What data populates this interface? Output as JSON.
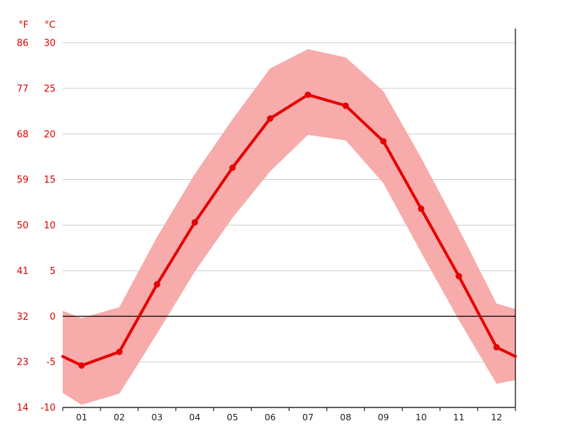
{
  "page": {
    "background": "#ffffff"
  },
  "chart_data": {
    "type": "line",
    "title": "",
    "description": "Climate graph: monthly mean temperature line with min–max temperature band",
    "legend": "none",
    "grid": true,
    "x_categories": [
      "01",
      "02",
      "03",
      "04",
      "05",
      "06",
      "07",
      "08",
      "09",
      "10",
      "11",
      "12"
    ],
    "y_axis": {
      "unit_left": "°F",
      "unit_right": "°C",
      "f_ticks": [
        "86",
        "77",
        "68",
        "59",
        "50",
        "41",
        "32",
        "23",
        "14"
      ],
      "c_ticks": [
        "30",
        "25",
        "20",
        "15",
        "10",
        "5",
        "0",
        "-5",
        "-10"
      ],
      "c_values": [
        30,
        25,
        20,
        15,
        10,
        5,
        0,
        -5,
        -10
      ],
      "range_c": [
        -10,
        30
      ]
    },
    "series": [
      {
        "name": "mean-temperature-c",
        "edge_start": -4.4,
        "values": [
          -5.4,
          -3.9,
          3.5,
          10.3,
          16.3,
          21.7,
          24.3,
          23.1,
          19.2,
          11.8,
          4.4,
          -3.4
        ],
        "edge_end": -4.4
      },
      {
        "name": "max-temperature-c",
        "edge_start": 0.6,
        "values": [
          -0.2,
          1.0,
          8.7,
          15.6,
          21.6,
          27.2,
          29.3,
          28.4,
          24.7,
          17.4,
          9.6,
          1.4
        ],
        "edge_end": 0.8
      },
      {
        "name": "min-temperature-c",
        "edge_start": -8.4,
        "values": [
          -9.7,
          -8.5,
          -1.9,
          4.9,
          10.8,
          15.9,
          19.9,
          19.3,
          14.6,
          7.0,
          -0.4,
          -7.4
        ],
        "edge_end": -7.0
      }
    ],
    "zero_line_c": 0,
    "colors": {
      "line": "#e60000",
      "band": "#f7abab",
      "grid": "#cccccc",
      "axis": "#000000",
      "axis_text": "#dd0000",
      "month_text": "#222222"
    }
  }
}
